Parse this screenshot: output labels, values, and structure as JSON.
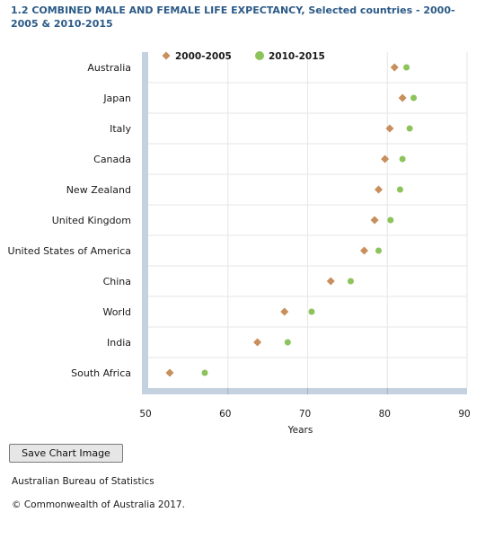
{
  "title": "1.2 COMBINED MALE AND FEMALE LIFE EXPECTANCY, Selected countries - 2000-2005 & 2010-2015",
  "chart_data": {
    "type": "scatter",
    "title": "1.2 COMBINED MALE AND FEMALE LIFE EXPECTANCY, Selected countries - 2000-2005 & 2010-2015",
    "categories": [
      "Australia",
      "Japan",
      "Italy",
      "Canada",
      "New Zealand",
      "United Kingdom",
      "United States of America",
      "China",
      "World",
      "India",
      "South Africa"
    ],
    "series": [
      {
        "name": "2000-2005",
        "marker": "diamond",
        "color": "#c88e5b",
        "values": [
          80.9,
          81.9,
          80.3,
          79.7,
          78.9,
          78.4,
          77.1,
          72.9,
          67.1,
          63.7,
          52.7
        ]
      },
      {
        "name": "2010-2015",
        "marker": "circle",
        "color": "#8dc35b",
        "values": [
          82.4,
          83.3,
          82.8,
          81.9,
          81.6,
          80.4,
          78.9,
          75.4,
          70.5,
          67.5,
          57.1
        ]
      }
    ],
    "xlabel": "Years",
    "xlim": [
      50,
      90
    ],
    "xticks": [
      50,
      60,
      70,
      80,
      90
    ],
    "grid": true,
    "legend": "top-left"
  },
  "save_button_label": "Save Chart Image",
  "source_text": "Australian Bureau of Statistics",
  "copyright_text": "© Commonwealth of Australia 2017."
}
